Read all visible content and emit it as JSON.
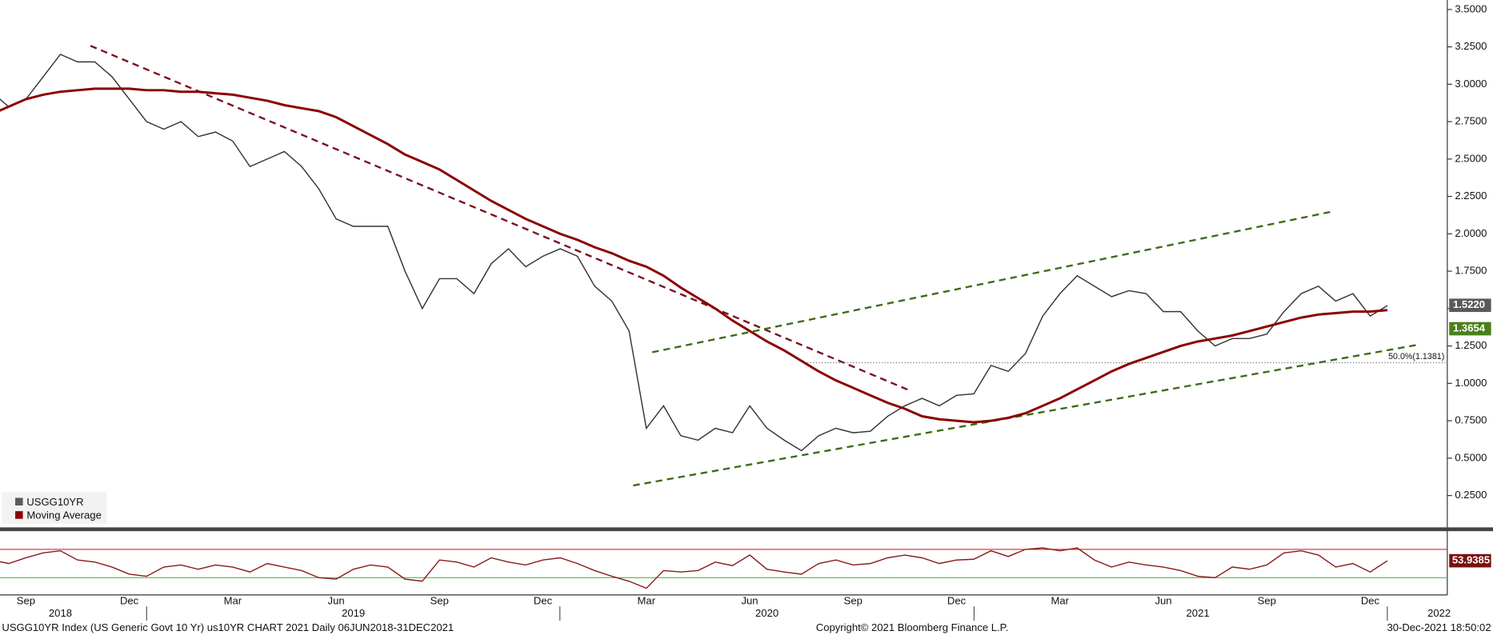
{
  "chart_data": [
    {
      "type": "line",
      "categories": [
        null,
        null,
        "Sep",
        null,
        null,
        null,
        null,
        null,
        "Dec",
        null,
        null,
        null,
        null,
        null,
        "Mar",
        null,
        null,
        null,
        null,
        null,
        "Jun",
        null,
        null,
        null,
        null,
        null,
        "Sep",
        null,
        null,
        null,
        null,
        null,
        "Dec",
        null,
        null,
        null,
        null,
        null,
        "Mar",
        null,
        null,
        null,
        null,
        null,
        "Jun",
        null,
        null,
        null,
        null,
        null,
        "Sep",
        null,
        null,
        null,
        null,
        null,
        "Dec",
        null,
        null,
        null,
        null,
        null,
        "Mar",
        null,
        null,
        null,
        null,
        null,
        "Jun",
        null,
        null,
        null,
        null,
        null,
        "Sep",
        null,
        null,
        null,
        null,
        null,
        "Dec",
        null,
        null,
        null,
        null,
        null
      ],
      "years": [
        null,
        null,
        null,
        null,
        "2018",
        null,
        null,
        null,
        null,
        null,
        null,
        null,
        null,
        null,
        null,
        null,
        null,
        null,
        null,
        null,
        null,
        "2019",
        null,
        null,
        null,
        null,
        null,
        null,
        null,
        null,
        null,
        null,
        null,
        null,
        null,
        null,
        null,
        null,
        null,
        null,
        null,
        null,
        null,
        null,
        null,
        "2020",
        null,
        null,
        null,
        null,
        null,
        null,
        null,
        null,
        null,
        null,
        null,
        null,
        null,
        null,
        null,
        null,
        null,
        null,
        null,
        null,
        null,
        null,
        null,
        null,
        "2021",
        null,
        null,
        null,
        null,
        null,
        null,
        null,
        null,
        null,
        null,
        null,
        null,
        null,
        "2022",
        null
      ],
      "series": [
        {
          "name": "USGG10YR",
          "color": "#333333",
          "values": [
            2.95,
            2.85,
            2.9,
            3.05,
            3.2,
            3.15,
            3.15,
            3.05,
            2.9,
            2.75,
            2.7,
            2.75,
            2.65,
            2.68,
            2.62,
            2.45,
            2.5,
            2.55,
            2.45,
            2.3,
            2.1,
            2.05,
            2.05,
            2.05,
            1.75,
            1.5,
            1.7,
            1.7,
            1.6,
            1.8,
            1.9,
            1.78,
            1.85,
            1.9,
            1.85,
            1.65,
            1.55,
            1.35,
            0.7,
            0.85,
            0.65,
            0.62,
            0.7,
            0.67,
            0.85,
            0.7,
            0.62,
            0.55,
            0.65,
            0.7,
            0.67,
            0.68,
            0.78,
            0.85,
            0.9,
            0.85,
            0.92,
            0.93,
            1.12,
            1.08,
            1.2,
            1.45,
            1.6,
            1.72,
            1.65,
            1.58,
            1.62,
            1.6,
            1.48,
            1.48,
            1.35,
            1.25,
            1.3,
            1.3,
            1.33,
            1.48,
            1.6,
            1.65,
            1.55,
            1.6,
            1.45,
            1.52,
            null,
            null,
            null,
            null
          ]
        },
        {
          "name": "Moving Average",
          "color": "#8b0000",
          "values": [
            2.8,
            2.85,
            2.9,
            2.93,
            2.95,
            2.96,
            2.97,
            2.97,
            2.97,
            2.96,
            2.96,
            2.95,
            2.95,
            2.94,
            2.93,
            2.91,
            2.89,
            2.86,
            2.84,
            2.82,
            2.78,
            2.72,
            2.66,
            2.6,
            2.53,
            2.48,
            2.43,
            2.36,
            2.29,
            2.22,
            2.16,
            2.1,
            2.05,
            2.0,
            1.96,
            1.91,
            1.87,
            1.82,
            1.78,
            1.72,
            1.64,
            1.57,
            1.5,
            1.42,
            1.35,
            1.28,
            1.22,
            1.15,
            1.08,
            1.02,
            0.97,
            0.92,
            0.87,
            0.83,
            0.78,
            0.76,
            0.75,
            0.74,
            0.75,
            0.77,
            0.8,
            0.85,
            0.9,
            0.96,
            1.02,
            1.08,
            1.13,
            1.17,
            1.21,
            1.25,
            1.28,
            1.3,
            1.32,
            1.35,
            1.38,
            1.41,
            1.44,
            1.46,
            1.47,
            1.48,
            1.48,
            1.49,
            null,
            null,
            null,
            null
          ]
        }
      ],
      "ylim": [
        0.05,
        3.55
      ],
      "yticks": [
        {
          "value": 0.25,
          "label": "0.2500"
        },
        {
          "value": 0.5,
          "label": "0.5000"
        },
        {
          "value": 0.75,
          "label": "0.7500"
        },
        {
          "value": 1.0,
          "label": "1.0000"
        },
        {
          "value": 1.25,
          "label": "1.2500"
        },
        {
          "value": 1.5,
          "label": "1.5000"
        },
        {
          "value": 1.75,
          "label": "1.7500"
        },
        {
          "value": 2.0,
          "label": "2.0000"
        },
        {
          "value": 2.25,
          "label": "2.2500"
        },
        {
          "value": 2.5,
          "label": "2.5000"
        },
        {
          "value": 2.75,
          "label": "2.7500"
        },
        {
          "value": 3.0,
          "label": "3.0000"
        },
        {
          "value": 3.25,
          "label": "3.2500"
        },
        {
          "value": 3.5,
          "label": "3.5000"
        }
      ],
      "grid": false,
      "price_tags": [
        {
          "value": 1.522,
          "label": "1.5220",
          "color": "#5a5a5a"
        },
        {
          "value": 1.3654,
          "label": "1.3654",
          "color": "#4a7f1a"
        }
      ],
      "level_line": {
        "value": 1.1381,
        "label": "50.0%(1.1381)"
      }
    },
    {
      "type": "line",
      "series": [
        {
          "color": "#8b1a1a",
          "values": [
            55,
            50,
            58,
            65,
            68,
            55,
            52,
            45,
            35,
            32,
            45,
            48,
            42,
            48,
            45,
            38,
            50,
            45,
            40,
            30,
            28,
            42,
            48,
            45,
            28,
            25,
            55,
            52,
            45,
            58,
            52,
            48,
            55,
            58,
            50,
            40,
            32,
            25,
            15,
            40,
            38,
            40,
            52,
            47,
            62,
            42,
            38,
            35,
            50,
            55,
            48,
            50,
            58,
            62,
            58,
            50,
            55,
            56,
            68,
            60,
            70,
            72,
            68,
            72,
            55,
            45,
            52,
            48,
            45,
            40,
            32,
            30,
            45,
            42,
            48,
            65,
            68,
            62,
            45,
            50,
            38,
            53.9385,
            null,
            null,
            null,
            null
          ]
        }
      ],
      "ylim": [
        7,
        93
      ],
      "levels": [
        {
          "value": 70,
          "color": "#e02020"
        },
        {
          "value": 30,
          "color": "#33cc33"
        }
      ]
    }
  ],
  "footer": {
    "left": "USGG10YR Index (US Generic Govt 10 Yr) us10YR CHART 2021  Daily 06JUN2018-31DEC2021",
    "center": "Copyright© 2021 Bloomberg Finance L.P.",
    "right": "30-Dec-2021 18:50:02"
  }
}
